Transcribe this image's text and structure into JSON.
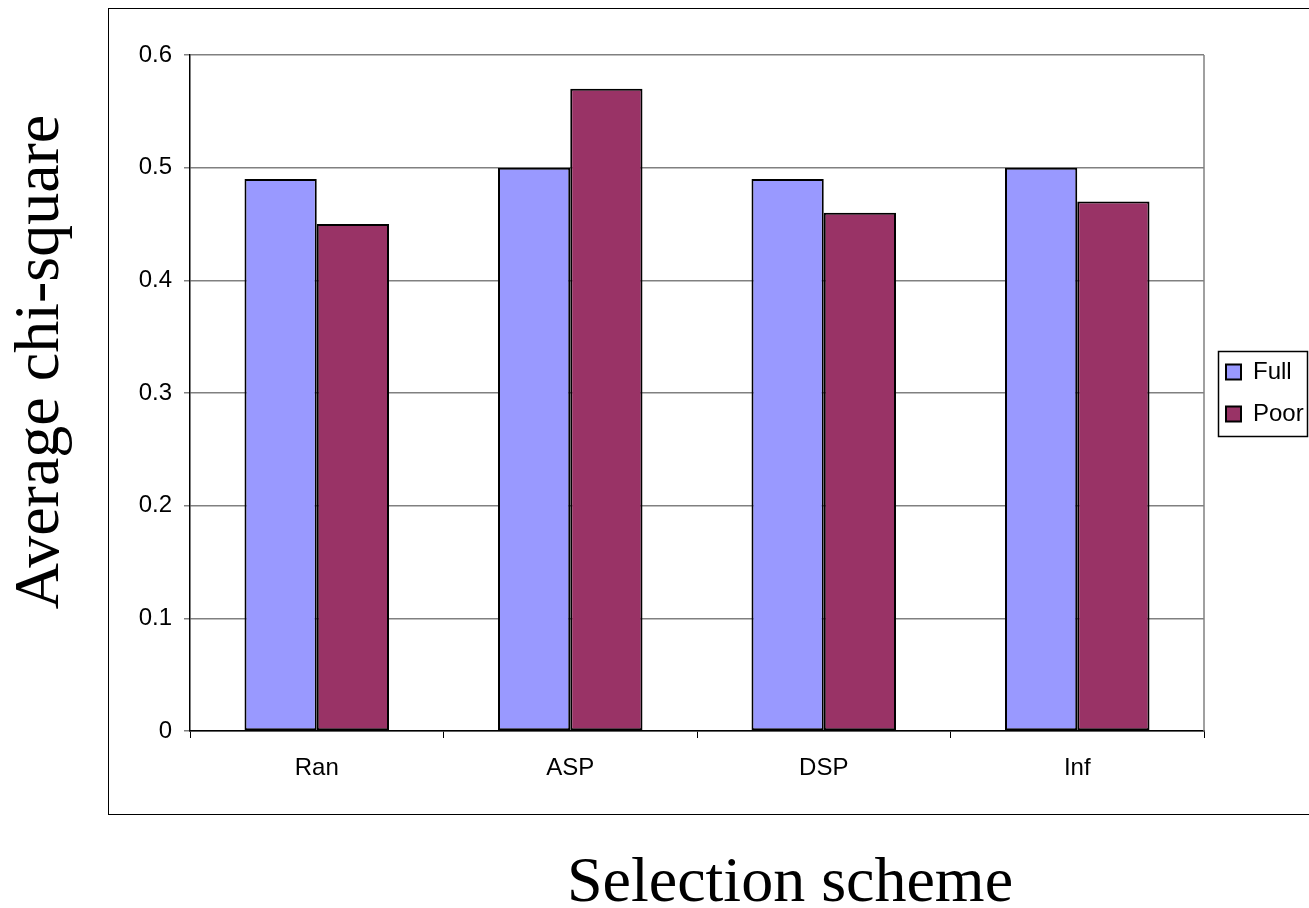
{
  "chart_data": {
    "type": "bar",
    "xlabel": "Selection scheme",
    "ylabel": "Average chi-square",
    "categories": [
      "Ran",
      "ASP",
      "DSP",
      "Inf"
    ],
    "series": [
      {
        "name": "Full",
        "color": "#9999ff",
        "values": [
          0.49,
          0.5,
          0.49,
          0.5
        ]
      },
      {
        "name": "Poor",
        "color": "#993366",
        "values": [
          0.45,
          0.57,
          0.46,
          0.47
        ]
      }
    ],
    "ylim": [
      0,
      0.6
    ],
    "yticks": [
      0,
      0.1,
      0.2,
      0.3,
      0.4,
      0.5,
      0.6
    ],
    "grid": "y",
    "legend": "right"
  }
}
